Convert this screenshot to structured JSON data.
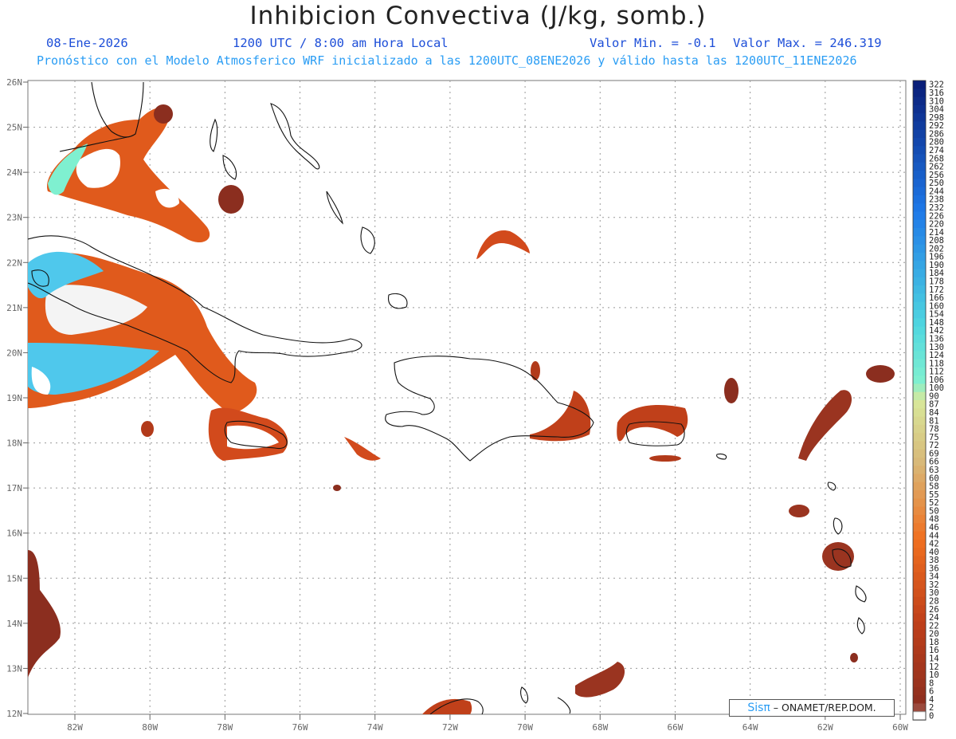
{
  "header": {
    "title": "Inhibicion Convectiva (J/kg, somb.)",
    "date": "08-Ene-2026",
    "time": "1200 UTC / 8:00 am Hora Local",
    "valor_min": "Valor Min. = -0.1",
    "valor_max": "Valor Max. = 246.319",
    "forecast_line": "Pronóstico con el Modelo Atmosferico WRF inicializado a las 1200UTC_08ENE2026 y válido hasta las  1200UTC_11ENE2026"
  },
  "axes": {
    "lat_labels": [
      "26N",
      "25N",
      "24N",
      "23N",
      "22N",
      "21N",
      "20N",
      "19N",
      "18N",
      "17N",
      "16N",
      "15N",
      "14N",
      "13N",
      "12N"
    ],
    "lon_labels": [
      "82W",
      "80W",
      "78W",
      "76W",
      "74W",
      "72W",
      "70W",
      "68W",
      "66W",
      "64W",
      "62W",
      "60W"
    ]
  },
  "colorbar": {
    "labels": [
      "322",
      "316",
      "310",
      "304",
      "298",
      "292",
      "286",
      "280",
      "274",
      "268",
      "262",
      "256",
      "250",
      "244",
      "238",
      "232",
      "226",
      "220",
      "214",
      "208",
      "202",
      "196",
      "190",
      "184",
      "178",
      "172",
      "166",
      "160",
      "154",
      "148",
      "142",
      "136",
      "130",
      "124",
      "118",
      "112",
      "106",
      "100",
      "90",
      "87",
      "84",
      "81",
      "78",
      "75",
      "72",
      "69",
      "66",
      "63",
      "60",
      "58",
      "55",
      "52",
      "50",
      "48",
      "46",
      "44",
      "42",
      "40",
      "38",
      "36",
      "34",
      "32",
      "30",
      "28",
      "26",
      "24",
      "22",
      "20",
      "18",
      "16",
      "14",
      "12",
      "10",
      "8",
      "6",
      "4",
      "2",
      "0"
    ],
    "colors": {
      "high": "#0a1f7a",
      "mid_blue": "#1e78e8",
      "cyan": "#4fd6e0",
      "aqua": "#7ff0d0",
      "yellow_green": "#d8e89a",
      "tan": "#d8b878",
      "orange": "#f07020",
      "red_brown": "#c0401a",
      "dark_brown": "#8b2e1f",
      "zero": "#ffffff"
    }
  },
  "watermark": {
    "logo": "Sisπ",
    "text": "– ONAMET/REP.DOM."
  }
}
